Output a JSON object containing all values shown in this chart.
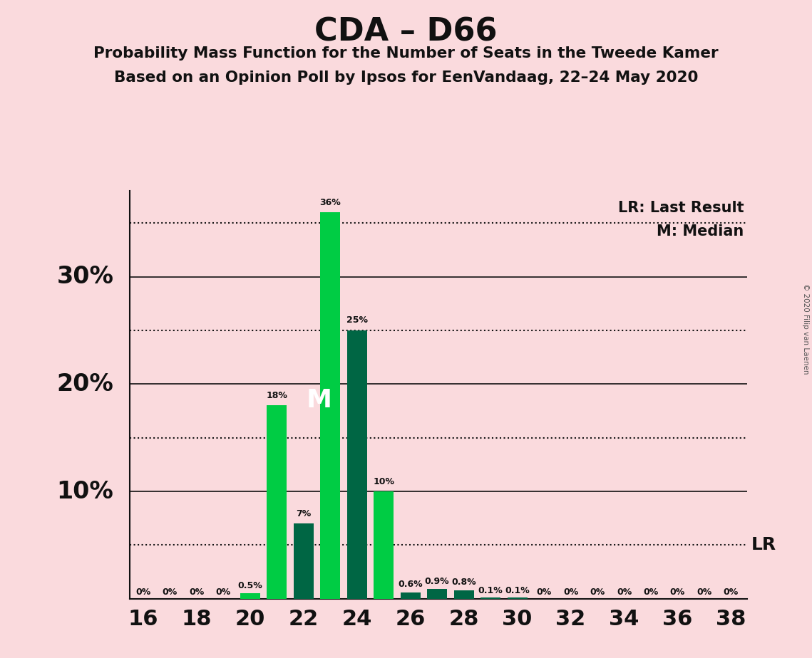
{
  "title": "CDA – D66",
  "subtitle1": "Probability Mass Function for the Number of Seats in the Tweede Kamer",
  "subtitle2": "Based on an Opinion Poll by Ipsos for EenVandaag, 22–24 May 2020",
  "copyright": "© 2020 Filip van Laenen",
  "seats": [
    16,
    17,
    18,
    19,
    20,
    21,
    22,
    23,
    24,
    25,
    26,
    27,
    28,
    29,
    30,
    31,
    32,
    33,
    34,
    35,
    36,
    37,
    38
  ],
  "probabilities": [
    0.0,
    0.0,
    0.0,
    0.0,
    0.5,
    18.0,
    7.0,
    36.0,
    25.0,
    10.0,
    0.6,
    0.9,
    0.8,
    0.1,
    0.1,
    0.0,
    0.0,
    0.0,
    0.0,
    0.0,
    0.0,
    0.0,
    0.0
  ],
  "bar_colors": [
    "#00CC44",
    "#00CC44",
    "#00CC44",
    "#00CC44",
    "#00CC44",
    "#00CC44",
    "#006644",
    "#00CC44",
    "#006644",
    "#00CC44",
    "#006644",
    "#006644",
    "#006644",
    "#006644",
    "#006644",
    "#00CC44",
    "#00CC44",
    "#00CC44",
    "#00CC44",
    "#00CC44",
    "#00CC44",
    "#00CC44",
    "#00CC44"
  ],
  "labels": [
    "0%",
    "0%",
    "0%",
    "0%",
    "0.5%",
    "18%",
    "7%",
    "36%",
    "25%",
    "10%",
    "0.6%",
    "0.9%",
    "0.8%",
    "0.1%",
    "0.1%",
    "0%",
    "0%",
    "0%",
    "0%",
    "0%",
    "0%",
    "0%",
    "0%"
  ],
  "median_seat": 23,
  "lr_value": 5.0,
  "background_color": "#FADADD",
  "solid_lines": [
    10,
    20,
    30
  ],
  "dotted_lines": [
    5,
    15,
    25,
    35
  ],
  "lr_line": 5.0,
  "ylim": [
    0,
    38
  ],
  "xlim_left": 15.5,
  "xlim_right": 38.6
}
